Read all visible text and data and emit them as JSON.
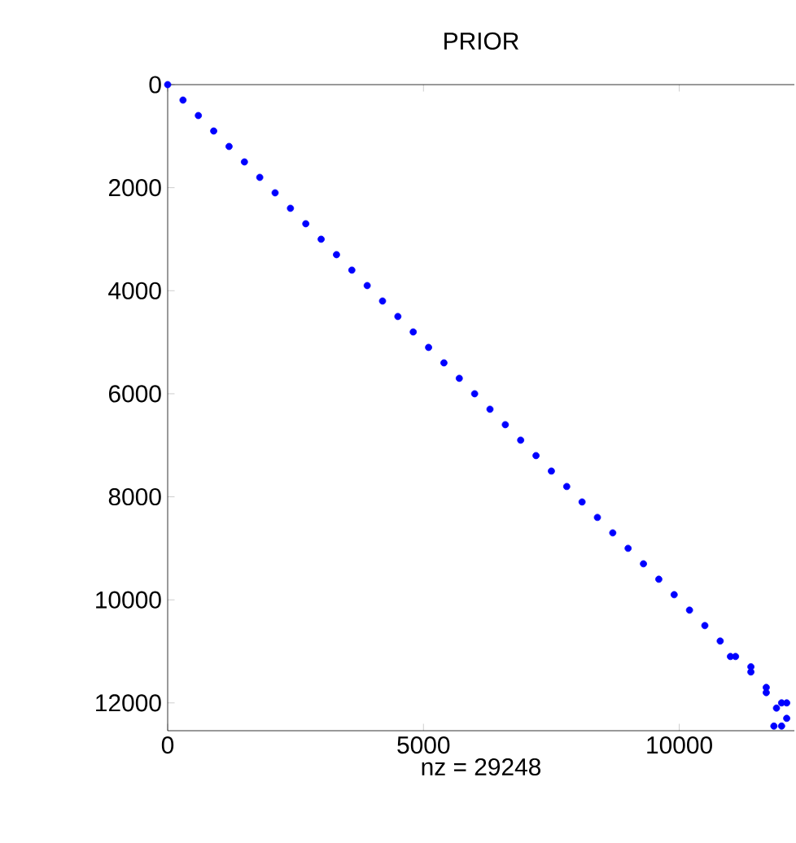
{
  "chart_data": {
    "type": "scatter",
    "title": "PRIOR",
    "xlabel": "nz = 29248",
    "marker": "circle",
    "color": "#0000ff",
    "x": [
      0,
      300,
      600,
      900,
      1200,
      1500,
      1800,
      2100,
      2400,
      2700,
      3000,
      3300,
      3600,
      3900,
      4200,
      4500,
      4800,
      5100,
      5400,
      5700,
      6000,
      6300,
      6600,
      6900,
      7200,
      7500,
      7800,
      8100,
      8400,
      8700,
      9000,
      9300,
      9600,
      9900,
      10200,
      10500,
      10800,
      11100,
      11400,
      11700,
      12000,
      11000,
      11400,
      11700,
      11900,
      12000,
      11850,
      12100,
      12100
    ],
    "values": [
      0,
      300,
      600,
      900,
      1200,
      1500,
      1800,
      2100,
      2400,
      2700,
      3000,
      3300,
      3600,
      3900,
      4200,
      4500,
      4800,
      5100,
      5400,
      5700,
      6000,
      6300,
      6600,
      6900,
      7200,
      7500,
      7800,
      8100,
      8400,
      8700,
      9000,
      9300,
      9600,
      9900,
      10200,
      10500,
      10800,
      11100,
      11400,
      11700,
      12000,
      11100,
      11300,
      11800,
      12100,
      12450,
      12450,
      12300,
      12000
    ],
    "xlim": [
      0,
      12250
    ],
    "ylim": [
      12540,
      0
    ],
    "xticks": [
      0,
      5000,
      10000
    ],
    "yticks": [
      0,
      2000,
      4000,
      6000,
      8000,
      10000,
      12000
    ]
  }
}
